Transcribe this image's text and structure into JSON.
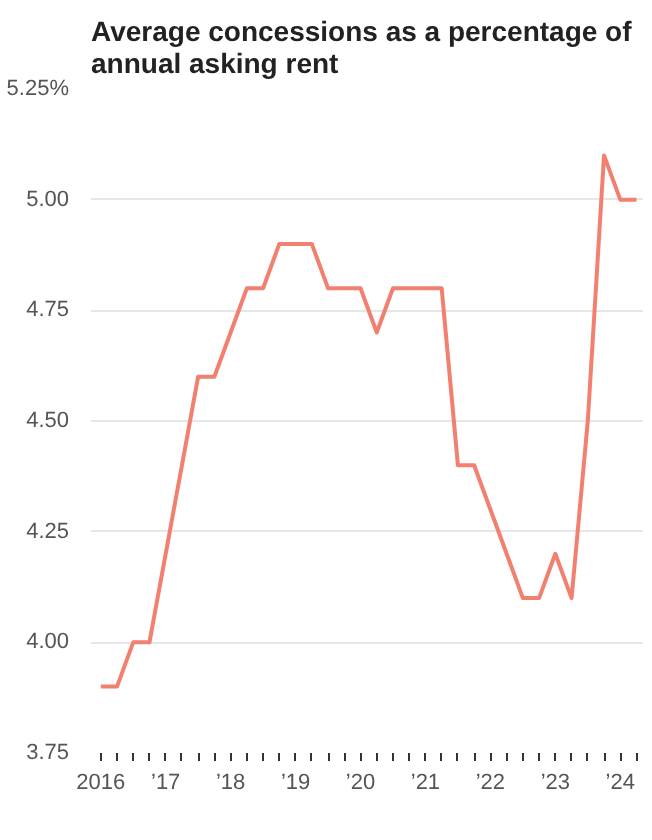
{
  "chart_data": {
    "type": "line",
    "title": "Average concessions as a percentage of annual asking rent",
    "x": [
      2016.0,
      2016.25,
      2016.5,
      2016.75,
      2017.0,
      2017.25,
      2017.5,
      2017.75,
      2018.0,
      2018.25,
      2018.5,
      2018.75,
      2019.0,
      2019.25,
      2019.5,
      2019.75,
      2020.0,
      2020.25,
      2020.5,
      2020.75,
      2021.0,
      2021.25,
      2021.5,
      2021.75,
      2022.0,
      2022.25,
      2022.5,
      2022.75,
      2023.0,
      2023.25,
      2023.5,
      2023.75,
      2024.0,
      2024.25
    ],
    "series": [
      {
        "color": "#f28070",
        "values": [
          3.9,
          3.9,
          4.0,
          4.0,
          4.2,
          4.4,
          4.6,
          4.6,
          4.7,
          4.8,
          4.8,
          4.9,
          4.9,
          4.9,
          4.8,
          4.8,
          4.8,
          4.7,
          4.8,
          4.8,
          4.8,
          4.8,
          4.4,
          4.4,
          4.3,
          4.2,
          4.1,
          4.1,
          4.2,
          4.1,
          4.5,
          5.1,
          5.0,
          5.0
        ]
      }
    ],
    "xlim": [
      2015.85,
      2024.35
    ],
    "xticks": [
      {
        "value": 2016,
        "label": "2016"
      },
      {
        "value": 2016.25,
        "label": null
      },
      {
        "value": 2016.5,
        "label": null
      },
      {
        "value": 2016.75,
        "label": null
      },
      {
        "value": 2017,
        "label": "’17"
      },
      {
        "value": 2017.25,
        "label": null
      },
      {
        "value": 2017.5,
        "label": null
      },
      {
        "value": 2017.75,
        "label": null
      },
      {
        "value": 2018,
        "label": "’18"
      },
      {
        "value": 2018.25,
        "label": null
      },
      {
        "value": 2018.5,
        "label": null
      },
      {
        "value": 2018.75,
        "label": null
      },
      {
        "value": 2019,
        "label": "’19"
      },
      {
        "value": 2019.25,
        "label": null
      },
      {
        "value": 2019.5,
        "label": null
      },
      {
        "value": 2019.75,
        "label": null
      },
      {
        "value": 2020,
        "label": "’20"
      },
      {
        "value": 2020.25,
        "label": null
      },
      {
        "value": 2020.5,
        "label": null
      },
      {
        "value": 2020.75,
        "label": null
      },
      {
        "value": 2021,
        "label": "’21"
      },
      {
        "value": 2021.25,
        "label": null
      },
      {
        "value": 2021.5,
        "label": null
      },
      {
        "value": 2021.75,
        "label": null
      },
      {
        "value": 2022,
        "label": "’22"
      },
      {
        "value": 2022.25,
        "label": null
      },
      {
        "value": 2022.5,
        "label": null
      },
      {
        "value": 2022.75,
        "label": null
      },
      {
        "value": 2023,
        "label": "’23"
      },
      {
        "value": 2023.25,
        "label": null
      },
      {
        "value": 2023.5,
        "label": null
      },
      {
        "value": 2023.75,
        "label": null
      },
      {
        "value": 2024,
        "label": "’24"
      },
      {
        "value": 2024.25,
        "label": null
      }
    ],
    "ylim": [
      3.75,
      5.25
    ],
    "yticks": [
      {
        "value": 3.75,
        "label": "3.75"
      },
      {
        "value": 4.0,
        "label": "4.00"
      },
      {
        "value": 4.25,
        "label": "4.25"
      },
      {
        "value": 4.5,
        "label": "4.50"
      },
      {
        "value": 4.75,
        "label": "4.75"
      },
      {
        "value": 5.0,
        "label": "5.00"
      },
      {
        "value": 5.25,
        "label": "5.25%"
      }
    ],
    "grid": "y",
    "marker": "none",
    "line_style": "solid"
  }
}
